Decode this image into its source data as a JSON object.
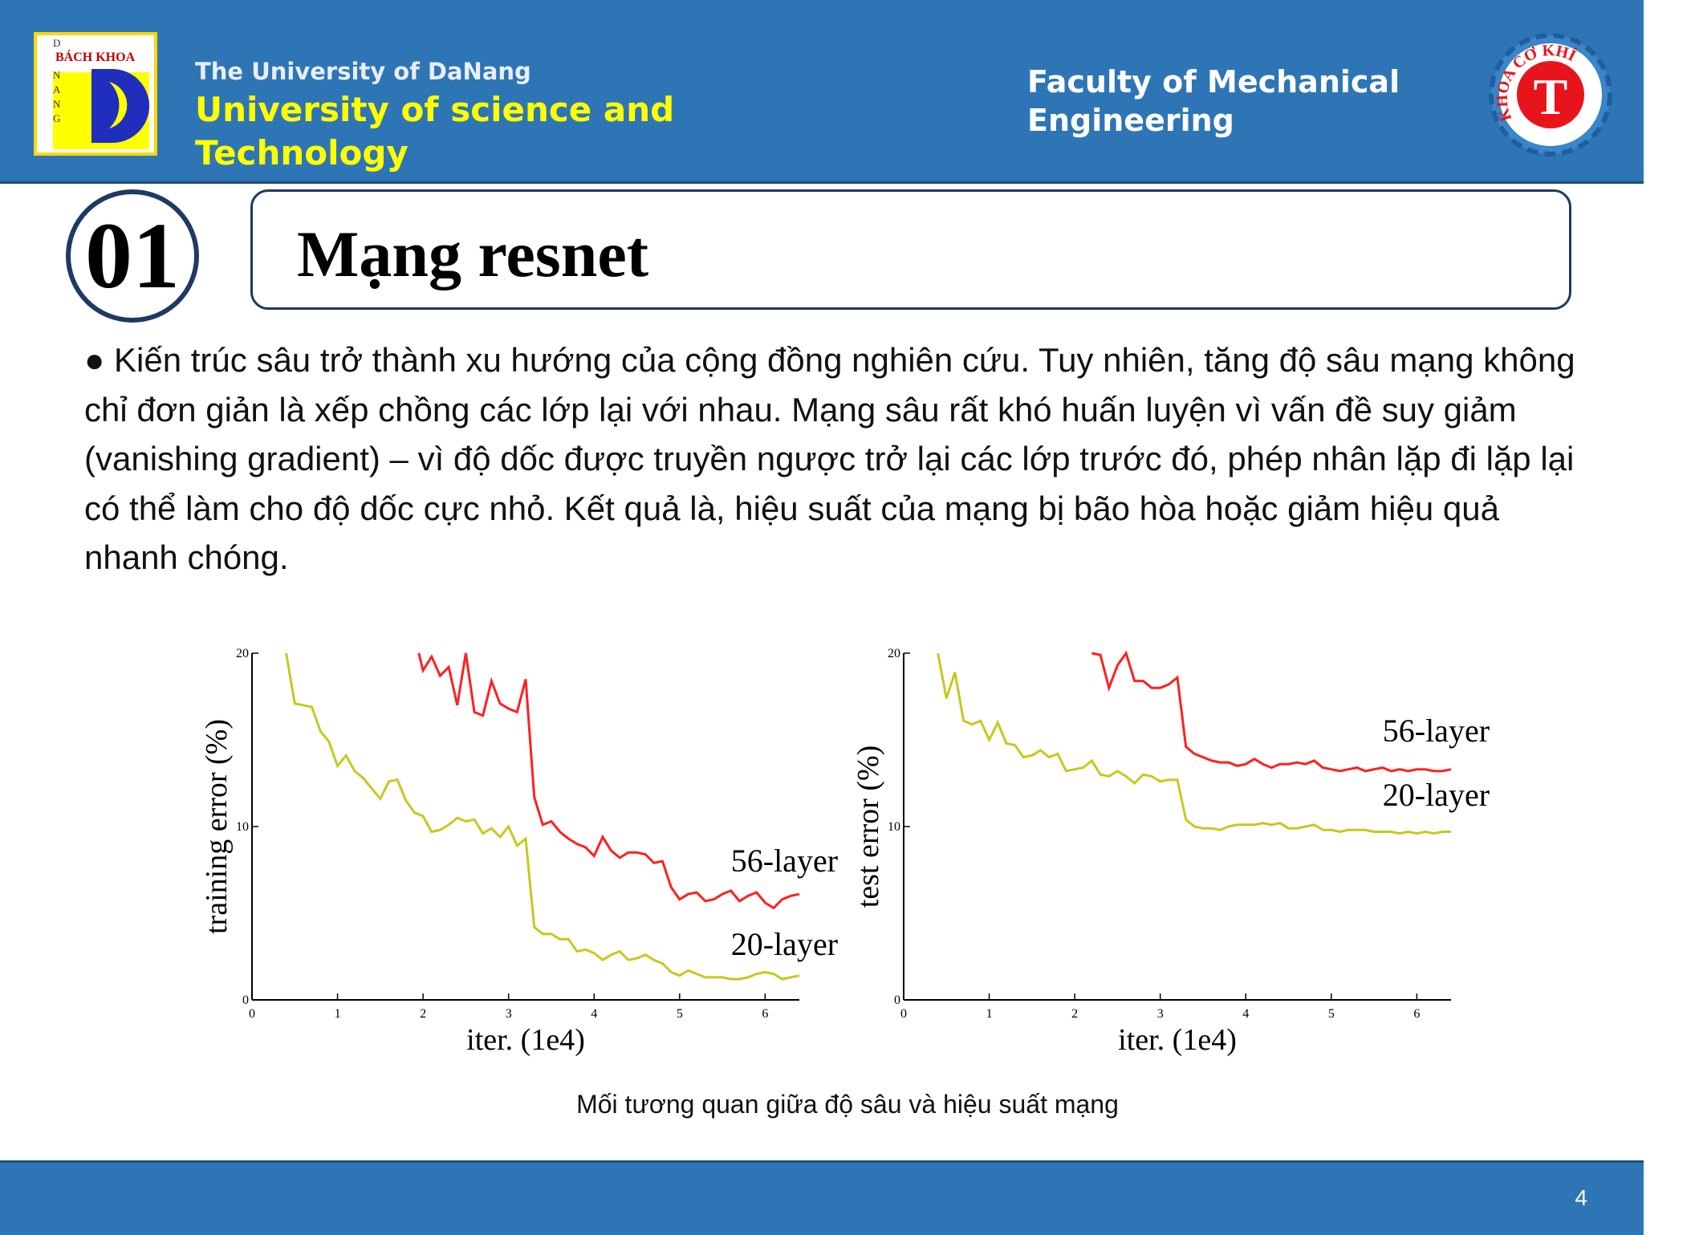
{
  "header": {
    "university_small": "The University of DaNang",
    "university_big": "University of science and Technology",
    "faculty": "Faculty of Mechanical Engineering",
    "left_logo": {
      "letters_vertical": [
        "D",
        "N",
        "A",
        "N",
        "G"
      ],
      "bach_khoa": "BÁCH KHOA"
    },
    "right_logo": {
      "ring_text": "KHOA CƠ KHÍ",
      "glyph": "T"
    }
  },
  "section": {
    "number": "01",
    "title": "Mạng resnet"
  },
  "body": {
    "paragraph": "● Kiến trúc sâu trở thành xu hướng của cộng đồng nghiên cứu. Tuy nhiên, tăng độ sâu mạng không chỉ đơn giản là xếp chồng các lớp lại với nhau. Mạng sâu rất khó huấn luyện vì vấn đề suy giảm (vanishing gradient) – vì độ dốc được truyền ngược trở lại các lớp trước đó, phép nhân lặp đi lặp lại có thể làm cho độ dốc cực nhỏ. Kết quả là, hiệu suất của mạng bị bão hòa hoặc giảm hiệu quả nhanh chóng."
  },
  "chart_data": [
    {
      "type": "line",
      "title": "",
      "xlabel": "iter. (1e4)",
      "ylabel": "training error (%)",
      "xlim": [
        0,
        6.4
      ],
      "ylim": [
        0,
        20
      ],
      "xticks": [
        0,
        1,
        2,
        3,
        4,
        5,
        6
      ],
      "yticks": [
        0,
        10,
        20
      ],
      "series": [
        {
          "name": "56-layer",
          "color": "#ff2020",
          "x": [
            1.95,
            2.0,
            2.1,
            2.2,
            2.3,
            2.4,
            2.5,
            2.6,
            2.7,
            2.8,
            2.9,
            3.0,
            3.1,
            3.2,
            3.3,
            3.4,
            3.5,
            3.6,
            3.7,
            3.8,
            3.9,
            4.0,
            4.1,
            4.2,
            4.3,
            4.4,
            4.5,
            4.6,
            4.7,
            4.8,
            4.9,
            5.0,
            5.1,
            5.2,
            5.3,
            5.4,
            5.5,
            5.6,
            5.7,
            5.8,
            5.9,
            6.0,
            6.1,
            6.2,
            6.3,
            6.4
          ],
          "y": [
            20,
            19,
            19.8,
            18.7,
            19.2,
            17,
            20,
            16.6,
            16.4,
            18.4,
            17.1,
            16.8,
            16.6,
            18.5,
            11.7,
            10.1,
            10.3,
            9.7,
            9.3,
            9.0,
            8.8,
            8.3,
            9.4,
            8.6,
            8.2,
            8.5,
            8.5,
            8.4,
            7.9,
            8.0,
            6.5,
            5.8,
            6.1,
            6.2,
            5.7,
            5.8,
            6.1,
            6.3,
            5.7,
            6.0,
            6.2,
            5.6,
            5.3,
            5.8,
            6.0,
            6.1
          ]
        },
        {
          "name": "20-layer",
          "color": "#c8c81e",
          "x": [
            0.4,
            0.5,
            0.6,
            0.7,
            0.8,
            0.9,
            1.0,
            1.1,
            1.2,
            1.3,
            1.4,
            1.5,
            1.6,
            1.7,
            1.8,
            1.9,
            2.0,
            2.1,
            2.2,
            2.3,
            2.4,
            2.5,
            2.6,
            2.7,
            2.8,
            2.9,
            3.0,
            3.1,
            3.2,
            3.3,
            3.4,
            3.5,
            3.6,
            3.7,
            3.8,
            3.9,
            4.0,
            4.1,
            4.2,
            4.3,
            4.4,
            4.5,
            4.6,
            4.7,
            4.8,
            4.9,
            5.0,
            5.1,
            5.2,
            5.3,
            5.4,
            5.5,
            5.6,
            5.7,
            5.8,
            5.9,
            6.0,
            6.1,
            6.2,
            6.3,
            6.4
          ],
          "y": [
            20,
            17.1,
            17.0,
            16.9,
            15.5,
            14.9,
            13.5,
            14.1,
            13.2,
            12.8,
            12.2,
            11.6,
            12.6,
            12.7,
            11.5,
            10.8,
            10.6,
            9.7,
            9.8,
            10.1,
            10.5,
            10.3,
            10.4,
            9.6,
            9.9,
            9.4,
            10.0,
            8.9,
            9.3,
            4.2,
            3.8,
            3.8,
            3.5,
            3.5,
            2.8,
            2.9,
            2.7,
            2.3,
            2.6,
            2.8,
            2.3,
            2.4,
            2.6,
            2.3,
            2.1,
            1.6,
            1.4,
            1.7,
            1.5,
            1.3,
            1.3,
            1.3,
            1.2,
            1.2,
            1.3,
            1.5,
            1.6,
            1.5,
            1.2,
            1.3,
            1.4
          ]
        }
      ],
      "annotations": [
        {
          "text": "56-layer",
          "x": 5.6,
          "y": 7.4
        },
        {
          "text": "20-layer",
          "x": 5.6,
          "y": 2.6
        }
      ]
    },
    {
      "type": "line",
      "title": "",
      "xlabel": "iter. (1e4)",
      "ylabel": "test error (%)",
      "xlim": [
        0,
        6.4
      ],
      "ylim": [
        0,
        20
      ],
      "xticks": [
        0,
        1,
        2,
        3,
        4,
        5,
        6
      ],
      "yticks": [
        0,
        10,
        20
      ],
      "series": [
        {
          "name": "56-layer",
          "color": "#ff2020",
          "x": [
            2.2,
            2.3,
            2.4,
            2.5,
            2.6,
            2.7,
            2.8,
            2.9,
            3.0,
            3.1,
            3.2,
            3.3,
            3.4,
            3.5,
            3.6,
            3.7,
            3.8,
            3.9,
            4.0,
            4.1,
            4.2,
            4.3,
            4.4,
            4.5,
            4.6,
            4.7,
            4.8,
            4.9,
            5.0,
            5.1,
            5.2,
            5.3,
            5.4,
            5.5,
            5.6,
            5.7,
            5.8,
            5.9,
            6.0,
            6.1,
            6.2,
            6.3,
            6.4
          ],
          "y": [
            20,
            19.9,
            18.0,
            19.3,
            20,
            18.4,
            18.4,
            18.0,
            18.0,
            18.2,
            18.6,
            14.6,
            14.2,
            14.0,
            13.8,
            13.7,
            13.7,
            13.5,
            13.6,
            13.9,
            13.6,
            13.4,
            13.6,
            13.6,
            13.7,
            13.6,
            13.8,
            13.4,
            13.3,
            13.2,
            13.3,
            13.4,
            13.2,
            13.3,
            13.4,
            13.2,
            13.3,
            13.2,
            13.3,
            13.3,
            13.2,
            13.2,
            13.3
          ]
        },
        {
          "name": "20-layer",
          "color": "#c8c81e",
          "x": [
            0.4,
            0.5,
            0.6,
            0.7,
            0.8,
            0.9,
            1.0,
            1.1,
            1.2,
            1.3,
            1.4,
            1.5,
            1.6,
            1.7,
            1.8,
            1.9,
            2.0,
            2.1,
            2.2,
            2.3,
            2.4,
            2.5,
            2.6,
            2.7,
            2.8,
            2.9,
            3.0,
            3.1,
            3.2,
            3.3,
            3.4,
            3.5,
            3.6,
            3.7,
            3.8,
            3.9,
            4.0,
            4.1,
            4.2,
            4.3,
            4.4,
            4.5,
            4.6,
            4.7,
            4.8,
            4.9,
            5.0,
            5.1,
            5.2,
            5.3,
            5.4,
            5.5,
            5.6,
            5.7,
            5.8,
            5.9,
            6.0,
            6.1,
            6.2,
            6.3,
            6.4
          ],
          "y": [
            20,
            17.4,
            18.9,
            16.1,
            15.9,
            16.1,
            15.0,
            16.0,
            14.8,
            14.7,
            14.0,
            14.1,
            14.4,
            14.0,
            14.2,
            13.2,
            13.3,
            13.4,
            13.8,
            13.0,
            12.9,
            13.2,
            12.9,
            12.5,
            13.0,
            12.9,
            12.6,
            12.7,
            12.7,
            10.4,
            10.0,
            9.9,
            9.9,
            9.8,
            10.0,
            10.1,
            10.1,
            10.1,
            10.2,
            10.1,
            10.2,
            9.9,
            9.9,
            10.0,
            10.1,
            9.8,
            9.8,
            9.7,
            9.8,
            9.8,
            9.8,
            9.7,
            9.7,
            9.7,
            9.6,
            9.7,
            9.6,
            9.7,
            9.6,
            9.7,
            9.7
          ]
        }
      ],
      "annotations": [
        {
          "text": "56-layer",
          "x": 5.6,
          "y": 14.9
        },
        {
          "text": "20-layer",
          "x": 5.6,
          "y": 11.2
        }
      ]
    }
  ],
  "caption": "Mối tương quan giữa độ sâu và hiệu suất mạng",
  "footer": {
    "page_number": "4"
  },
  "colors": {
    "header_blue": "#2e75b6",
    "title_yellow": "#ffff00",
    "dark_navy": "#1f3864"
  }
}
